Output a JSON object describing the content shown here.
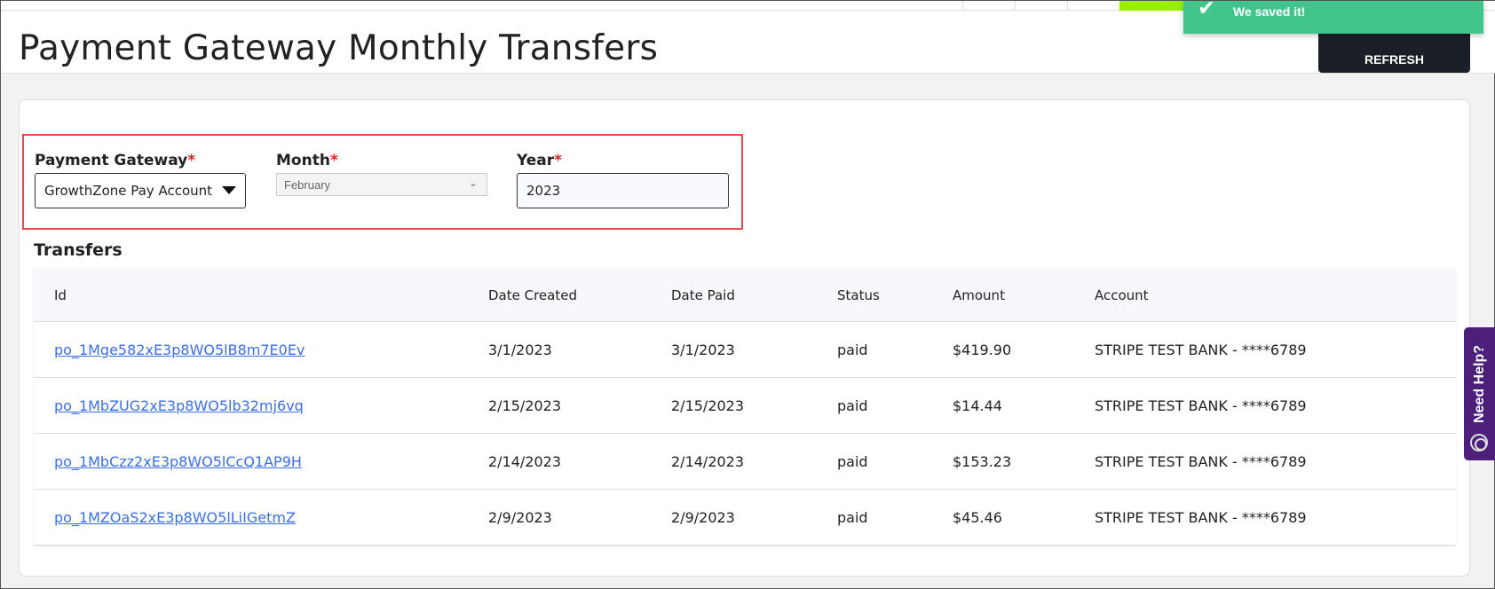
{
  "header": {
    "title": "Payment Gateway Monthly Transfers",
    "refresh_label": "REFRESH"
  },
  "toast": {
    "message": "We saved it!",
    "icon": "check-icon",
    "color": "#42c58a"
  },
  "filters": {
    "gateway": {
      "label": "Payment Gateway",
      "required": "*",
      "value": "GrowthZone Pay Account"
    },
    "month": {
      "label": "Month",
      "required": "*",
      "value": "February"
    },
    "year": {
      "label": "Year",
      "required": "*",
      "value": "2023"
    }
  },
  "transfers": {
    "heading": "Transfers",
    "columns": [
      "Id",
      "Date Created",
      "Date Paid",
      "Status",
      "Amount",
      "Account"
    ],
    "rows": [
      {
        "id": "po_1Mge582xE3p8WO5lB8m7E0Ev",
        "created": "3/1/2023",
        "paid": "3/1/2023",
        "status": "paid",
        "amount": "$419.90",
        "account": "STRIPE TEST BANK - ****6789"
      },
      {
        "id": "po_1MbZUG2xE3p8WO5lb32mj6vq",
        "created": "2/15/2023",
        "paid": "2/15/2023",
        "status": "paid",
        "amount": "$14.44",
        "account": "STRIPE TEST BANK - ****6789"
      },
      {
        "id": "po_1MbCzz2xE3p8WO5lCcQ1AP9H",
        "created": "2/14/2023",
        "paid": "2/14/2023",
        "status": "paid",
        "amount": "$153.23",
        "account": "STRIPE TEST BANK - ****6789"
      },
      {
        "id": "po_1MZOaS2xE3p8WO5lLiIGetmZ",
        "created": "2/9/2023",
        "paid": "2/9/2023",
        "status": "paid",
        "amount": "$45.46",
        "account": "STRIPE TEST BANK - ****6789"
      }
    ]
  },
  "help": {
    "label": "Need Help?",
    "icon": "lifebuoy-icon",
    "color": "#4b1f7a"
  }
}
